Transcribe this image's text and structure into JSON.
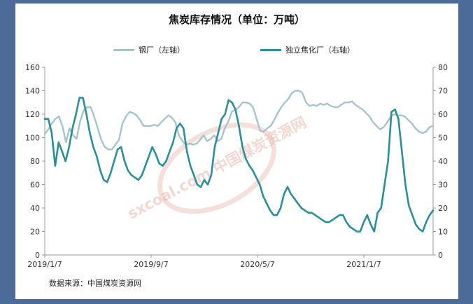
{
  "chart_data": {
    "type": "line",
    "title": "焦炭库存情况（单位：万吨）",
    "x_tick_labels": [
      "2019/1/7",
      "2019/9/7",
      "2020/5/7",
      "2021/1/7"
    ],
    "y_left_ticks": [
      0,
      20,
      40,
      60,
      80,
      100,
      120,
      140,
      160
    ],
    "y_right_ticks": [
      0,
      10,
      20,
      30,
      40,
      50,
      60,
      70,
      80
    ],
    "ylim_left": [
      0,
      160
    ],
    "ylim_right": [
      0,
      80
    ],
    "grid": false,
    "legend_position": "top",
    "series": [
      {
        "name": "钢厂（左轴）",
        "axis": "left",
        "color": "#a7c4ca",
        "values": [
          103,
          107,
          112,
          116,
          118,
          110,
          96,
          108,
          102,
          99,
          114,
          123,
          126,
          126,
          118,
          108,
          98,
          92,
          90,
          90,
          94,
          98,
          112,
          118,
          122,
          121,
          119,
          115,
          110,
          110,
          110,
          111,
          110,
          113,
          116,
          119,
          117,
          113,
          102,
          97,
          94,
          95,
          94,
          95,
          98,
          102,
          97,
          99,
          102,
          97,
          99,
          108,
          114,
          122,
          124,
          126,
          130,
          130,
          129,
          126,
          116,
          106,
          105,
          108,
          110,
          115,
          121,
          126,
          130,
          133,
          138,
          140,
          140,
          138,
          130,
          127,
          128,
          127,
          129,
          128,
          129,
          127,
          126,
          126,
          128,
          130,
          130,
          131,
          128,
          126,
          124,
          121,
          118,
          113,
          110,
          107,
          109,
          113,
          118,
          120,
          119,
          119,
          118,
          115,
          112,
          108,
          105,
          104,
          105,
          109,
          110
        ]
      },
      {
        "name": "独立焦化厂（右轴）",
        "axis": "right",
        "color": "#2b8f99",
        "values": [
          58,
          58,
          52,
          38,
          48,
          44,
          40,
          46,
          54,
          60,
          67,
          67,
          60,
          52,
          46,
          42,
          36,
          32,
          31,
          35,
          40,
          45,
          46,
          40,
          36,
          34,
          33,
          32,
          34,
          38,
          42,
          46,
          43,
          39,
          38,
          40,
          44,
          48,
          54,
          56,
          54,
          44,
          38,
          34,
          30,
          29,
          32,
          30,
          34,
          46,
          52,
          58,
          60,
          66,
          65,
          62,
          55,
          46,
          41,
          38,
          36,
          33,
          30,
          25,
          22,
          19,
          17,
          17,
          20,
          26,
          29,
          26,
          24,
          22,
          20,
          19,
          18,
          18,
          17,
          16,
          15,
          14,
          14,
          15,
          16,
          17,
          17,
          14,
          12,
          11,
          10,
          10,
          14,
          17,
          13,
          10,
          18,
          20,
          30,
          40,
          61,
          62,
          58,
          44,
          30,
          21,
          17,
          13,
          11,
          10,
          14,
          17,
          19
        ]
      }
    ]
  },
  "legend": {
    "left_series_label": "钢厂（左轴）",
    "right_series_label": "独立焦化厂（右轴）"
  },
  "watermark": {
    "text": "sxcoal.com 中国煤炭资源网",
    "color": "#e6b2a8"
  },
  "source_note": "数据来源：中国煤炭资源网"
}
